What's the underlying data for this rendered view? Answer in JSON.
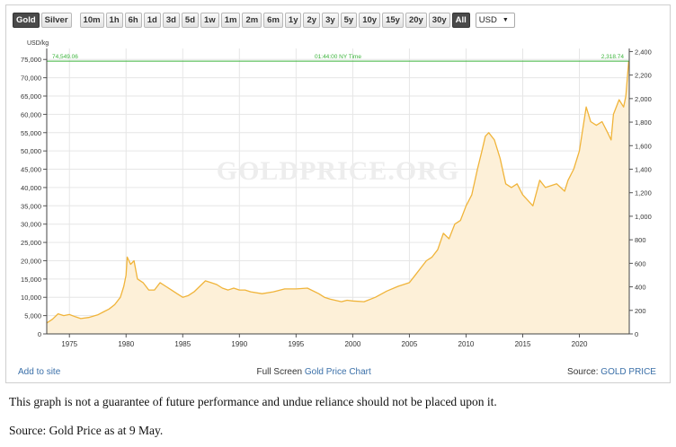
{
  "toolbar": {
    "metal_buttons": [
      {
        "label": "Gold",
        "active": true
      },
      {
        "label": "Silver",
        "active": false
      }
    ],
    "range_buttons": [
      {
        "label": "10m",
        "active": false
      },
      {
        "label": "1h",
        "active": false
      },
      {
        "label": "6h",
        "active": false
      },
      {
        "label": "1d",
        "active": false
      },
      {
        "label": "3d",
        "active": false
      },
      {
        "label": "5d",
        "active": false
      },
      {
        "label": "1w",
        "active": false
      },
      {
        "label": "1m",
        "active": false
      },
      {
        "label": "2m",
        "active": false
      },
      {
        "label": "6m",
        "active": false
      },
      {
        "label": "1y",
        "active": false
      },
      {
        "label": "2y",
        "active": false
      },
      {
        "label": "3y",
        "active": false
      },
      {
        "label": "5y",
        "active": false
      },
      {
        "label": "10y",
        "active": false
      },
      {
        "label": "15y",
        "active": false
      },
      {
        "label": "20y",
        "active": false
      },
      {
        "label": "30y",
        "active": false
      },
      {
        "label": "All",
        "active": true
      }
    ],
    "currency": "USD"
  },
  "chart_data": {
    "type": "area",
    "watermark": "GOLDPRICE.ORG",
    "y_unit_label": "USD/kg",
    "current_value_left": "74,549.06",
    "current_value_right": "2,318.74",
    "current_time": "01:44:00 NY Time",
    "y_left_range": [
      0,
      75000
    ],
    "y_left_ticks": [
      "0",
      "5,000",
      "10,000",
      "15,000",
      "20,000",
      "25,000",
      "30,000",
      "35,000",
      "40,000",
      "45,000",
      "50,000",
      "55,000",
      "60,000",
      "65,000",
      "70,000",
      "75,000"
    ],
    "y_right_ticks": [
      "0",
      "200",
      "400",
      "600",
      "800",
      "1,000",
      "1,200",
      "1,400",
      "1,600",
      "1,800",
      "2,000",
      "2,200",
      "2,400"
    ],
    "x_range": [
      1973,
      2024.4
    ],
    "x_ticks": [
      "1975",
      "1980",
      "1985",
      "1990",
      "1995",
      "2000",
      "2005",
      "2010",
      "2015",
      "2020"
    ],
    "grid": true,
    "series": [
      {
        "x": [
          1973.0,
          1973.5,
          1974.0,
          1974.5,
          1975.0,
          1975.5,
          1976.0,
          1976.7,
          1977.5,
          1978.0,
          1978.5,
          1979.0,
          1979.5,
          1979.8,
          1980.0,
          1980.1,
          1980.4,
          1980.7,
          1981.0,
          1981.5,
          1982.0,
          1982.5,
          1983.0,
          1983.5,
          1984.0,
          1984.5,
          1985.0,
          1985.5,
          1986.0,
          1986.5,
          1987.0,
          1987.5,
          1988.0,
          1988.5,
          1989.0,
          1989.5,
          1990.0,
          1990.5,
          1991.0,
          1992.0,
          1993.0,
          1994.0,
          1995.0,
          1996.0,
          1997.0,
          1997.5,
          1998.0,
          1999.0,
          1999.5,
          2000.0,
          2001.0,
          2002.0,
          2003.0,
          2004.0,
          2005.0,
          2005.5,
          2006.0,
          2006.5,
          2007.0,
          2007.5,
          2008.0,
          2008.5,
          2009.0,
          2009.5,
          2010.0,
          2010.5,
          2011.0,
          2011.4,
          2011.7,
          2012.0,
          2012.5,
          2013.0,
          2013.5,
          2014.0,
          2014.5,
          2015.0,
          2015.9,
          2016.5,
          2017.0,
          2018.0,
          2018.7,
          2019.0,
          2019.5,
          2020.0,
          2020.6,
          2021.0,
          2021.5,
          2022.0,
          2022.5,
          2022.8,
          2023.0,
          2023.5,
          2023.9,
          2024.1,
          2024.35
        ],
        "y": [
          3000,
          4000,
          5500,
          5000,
          5300,
          4700,
          4200,
          4500,
          5200,
          6000,
          6800,
          8000,
          10000,
          13000,
          16000,
          21000,
          19000,
          20000,
          15000,
          14000,
          12000,
          12000,
          14000,
          13000,
          12000,
          11000,
          10000,
          10500,
          11500,
          13000,
          14500,
          14000,
          13500,
          12500,
          12000,
          12500,
          12000,
          12000,
          11500,
          11000,
          11500,
          12300,
          12300,
          12500,
          11000,
          10000,
          9500,
          8800,
          9200,
          9000,
          8800,
          10000,
          11700,
          13000,
          14000,
          16000,
          18000,
          20000,
          21000,
          23000,
          27500,
          26000,
          30000,
          31000,
          35000,
          38000,
          45000,
          50000,
          54000,
          55000,
          53000,
          48000,
          41000,
          40000,
          41000,
          38000,
          35000,
          42000,
          40000,
          41000,
          39000,
          42000,
          45000,
          50000,
          62000,
          58000,
          57000,
          58000,
          55000,
          53000,
          60000,
          64000,
          62000,
          65000,
          74549
        ]
      }
    ]
  },
  "footer": {
    "add_to_site": "Add to site",
    "fullscreen_prefix": "Full Screen",
    "fullscreen_link": "Gold Price Chart",
    "source_prefix": "Source:",
    "source_link": "GOLD PRICE"
  },
  "note": "This graph is not a guarantee of future performance and undue reliance should not be placed upon it.",
  "source_line": "Source: Gold Price as at 9 May.",
  "colors": {
    "line": "#f0b43a",
    "fill": "#fdf0d8",
    "current": "#3cb43c",
    "grid": "#e6e6e6",
    "link": "#3a6fa8"
  }
}
